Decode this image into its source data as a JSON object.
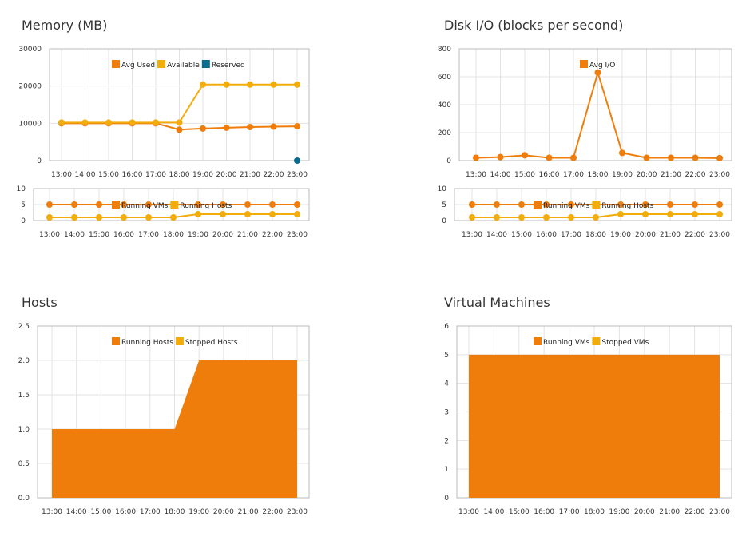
{
  "titles": {
    "memory": "Memory (MB)",
    "disk": "Disk I/O (blocks per second)",
    "hosts": "Hosts",
    "vms": "Virtual Machines"
  },
  "colors": {
    "orange": "#ef7d0b",
    "yellow": "#f2ad0d",
    "teal": "#0a6b8f",
    "grid": "#e3e3e3",
    "axis": "#bbbbbb"
  },
  "chart_data": [
    {
      "id": "memory",
      "type": "line",
      "title": "Memory (MB)",
      "x": [
        "13:00",
        "14:00",
        "15:00",
        "16:00",
        "17:00",
        "18:00",
        "19:00",
        "20:00",
        "21:00",
        "22:00",
        "23:00"
      ],
      "ylim": [
        0,
        30000
      ],
      "yticks": [
        0,
        10000,
        20000,
        30000
      ],
      "legend": "top",
      "series": [
        {
          "name": "Avg Used",
          "color": "#ef7d0b",
          "values": [
            10000,
            10000,
            10000,
            10000,
            10000,
            8300,
            8600,
            8800,
            9000,
            9100,
            9200
          ]
        },
        {
          "name": "Available",
          "color": "#f2ad0d",
          "values": [
            10200,
            10200,
            10200,
            10200,
            10200,
            10200,
            20400,
            20400,
            20400,
            20400,
            20400
          ]
        },
        {
          "name": "Reserved",
          "color": "#0a6b8f",
          "values": [
            null,
            null,
            null,
            null,
            null,
            null,
            null,
            null,
            null,
            null,
            0
          ]
        }
      ]
    },
    {
      "id": "memory-sub",
      "type": "line",
      "x": [
        "13:00",
        "14:00",
        "15:00",
        "16:00",
        "17:00",
        "18:00",
        "19:00",
        "20:00",
        "21:00",
        "22:00",
        "23:00"
      ],
      "ylim": [
        0,
        10
      ],
      "yticks": [
        0,
        5,
        10
      ],
      "legend": "top",
      "series": [
        {
          "name": "Running VMs",
          "color": "#ef7d0b",
          "values": [
            5,
            5,
            5,
            5,
            5,
            5,
            5,
            5,
            5,
            5,
            5
          ]
        },
        {
          "name": "Running Hosts",
          "color": "#f2ad0d",
          "values": [
            1,
            1,
            1,
            1,
            1,
            1,
            2,
            2,
            2,
            2,
            2
          ]
        }
      ]
    },
    {
      "id": "disk",
      "type": "line",
      "title": "Disk I/O (blocks per second)",
      "x": [
        "13:00",
        "14:00",
        "15:00",
        "16:00",
        "17:00",
        "18:00",
        "19:00",
        "20:00",
        "21:00",
        "22:00",
        "23:00"
      ],
      "ylim": [
        0,
        800
      ],
      "yticks": [
        0,
        200,
        400,
        600,
        800
      ],
      "legend": "top",
      "series": [
        {
          "name": "Avg I/O",
          "color": "#ef7d0b",
          "values": [
            20,
            25,
            38,
            20,
            20,
            630,
            55,
            20,
            20,
            20,
            18
          ]
        }
      ]
    },
    {
      "id": "disk-sub",
      "type": "line",
      "x": [
        "13:00",
        "14:00",
        "15:00",
        "16:00",
        "17:00",
        "18:00",
        "19:00",
        "20:00",
        "21:00",
        "22:00",
        "23:00"
      ],
      "ylim": [
        0,
        10
      ],
      "yticks": [
        0,
        5,
        10
      ],
      "legend": "top",
      "series": [
        {
          "name": "Running VMs",
          "color": "#ef7d0b",
          "values": [
            5,
            5,
            5,
            5,
            5,
            5,
            5,
            5,
            5,
            5,
            5
          ]
        },
        {
          "name": "Running Hosts",
          "color": "#f2ad0d",
          "values": [
            1,
            1,
            1,
            1,
            1,
            1,
            2,
            2,
            2,
            2,
            2
          ]
        }
      ]
    },
    {
      "id": "hosts",
      "type": "area",
      "title": "Hosts",
      "x": [
        "13:00",
        "14:00",
        "15:00",
        "16:00",
        "17:00",
        "18:00",
        "19:00",
        "20:00",
        "21:00",
        "22:00",
        "23:00"
      ],
      "ylim": [
        0,
        2.5
      ],
      "yticks": [
        "0.0",
        "0.5",
        "1.0",
        "1.5",
        "2.0",
        "2.5"
      ],
      "legend": "top",
      "series": [
        {
          "name": "Running Hosts",
          "color": "#ef7d0b",
          "values": [
            1,
            1,
            1,
            1,
            1,
            1,
            2,
            2,
            2,
            2,
            2
          ]
        },
        {
          "name": "Stopped Hosts",
          "color": "#f2ad0d",
          "values": [
            0,
            0,
            0,
            0,
            0,
            0,
            0,
            0,
            0,
            0,
            0
          ]
        }
      ]
    },
    {
      "id": "vms",
      "type": "area",
      "title": "Virtual Machines",
      "x": [
        "13:00",
        "14:00",
        "15:00",
        "16:00",
        "17:00",
        "18:00",
        "19:00",
        "20:00",
        "21:00",
        "22:00",
        "23:00"
      ],
      "ylim": [
        0,
        6
      ],
      "yticks": [
        "0",
        "1",
        "2",
        "3",
        "4",
        "5",
        "6"
      ],
      "legend": "top",
      "series": [
        {
          "name": "Running VMs",
          "color": "#ef7d0b",
          "values": [
            5,
            5,
            5,
            5,
            5,
            5,
            5,
            5,
            5,
            5,
            5
          ]
        },
        {
          "name": "Stopped VMs",
          "color": "#f2ad0d",
          "values": [
            0,
            0,
            0,
            0,
            0,
            0,
            0,
            0,
            0,
            0,
            0
          ]
        }
      ]
    }
  ]
}
